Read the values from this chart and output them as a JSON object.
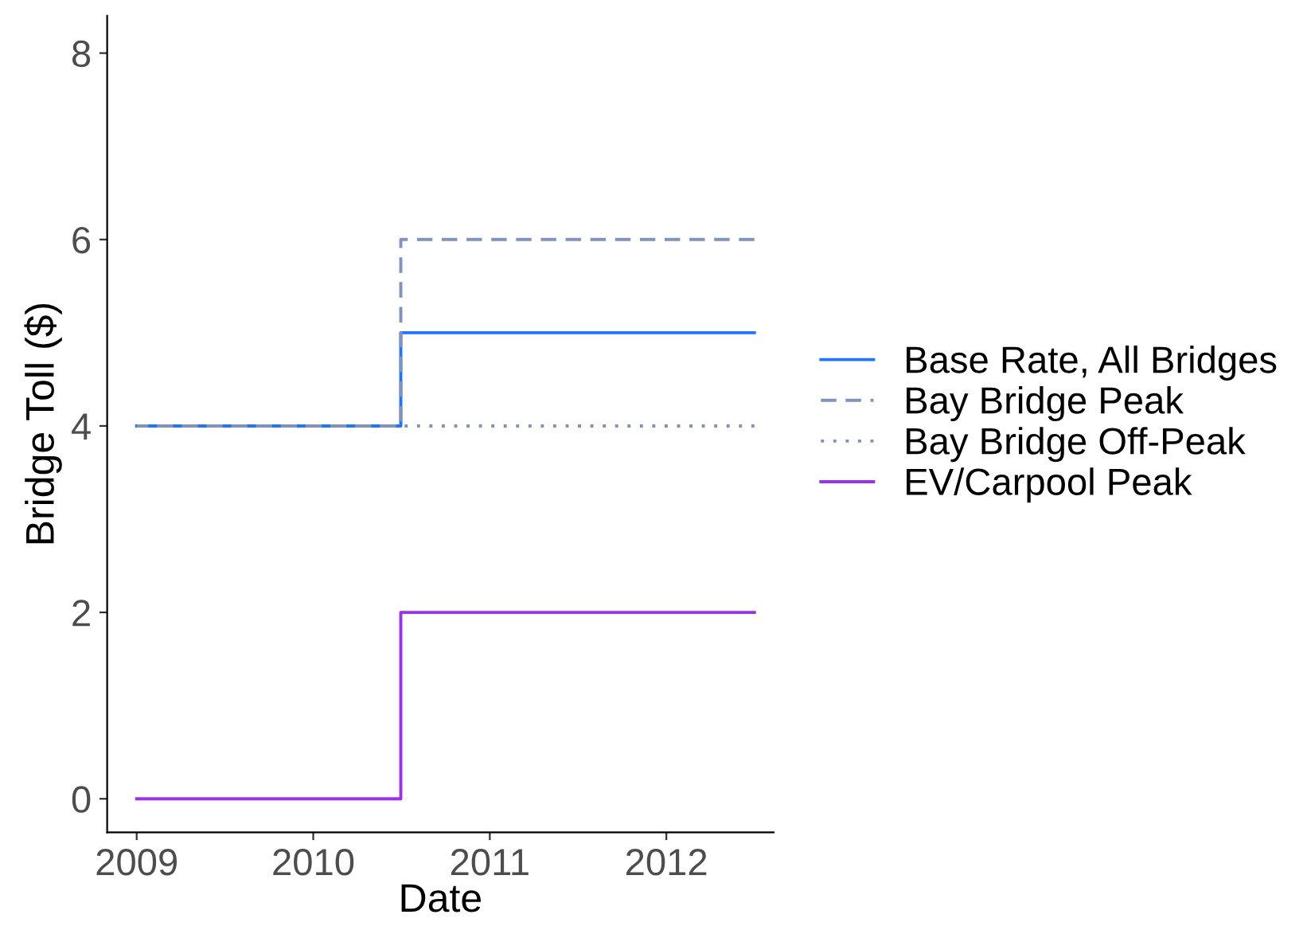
{
  "chart_data": {
    "type": "step",
    "xlabel": "Date",
    "ylabel": "Bridge Toll ($)",
    "series": [
      {
        "name": "Base Rate, All Bridges",
        "color": "#1f75fe",
        "line_style": "solid",
        "x": [
          "2009-01-01",
          "2010-07-01",
          "2012-07-01"
        ],
        "values": [
          4,
          5,
          5
        ]
      },
      {
        "name": "Bay Bridge Peak",
        "color": "#7f93bf",
        "line_style": "dashed",
        "x": [
          "2009-01-01",
          "2010-07-01",
          "2012-07-01"
        ],
        "values": [
          4,
          6,
          6
        ]
      },
      {
        "name": "Bay Bridge Off-Peak",
        "color": "#7f93bf",
        "line_style": "dotted",
        "x": [
          "2009-01-01",
          "2010-07-01",
          "2012-07-01"
        ],
        "values": [
          4,
          4,
          4
        ]
      },
      {
        "name": "EV/Carpool Peak",
        "color": "#9b30f0",
        "line_style": "solid",
        "x": [
          "2009-01-01",
          "2010-07-01",
          "2012-07-01"
        ],
        "values": [
          0,
          2,
          2
        ]
      }
    ],
    "xlim": [
      "2008-11-01",
      "2012-08-10"
    ],
    "xticks": [
      {
        "value": "2009-01-01",
        "label": "2009"
      },
      {
        "value": "2010-01-01",
        "label": "2010"
      },
      {
        "value": "2011-01-01",
        "label": "2011"
      },
      {
        "value": "2012-01-01",
        "label": "2012"
      }
    ],
    "ylim": [
      -0.36,
      8.4
    ],
    "yticks": [
      0,
      2,
      4,
      6,
      8
    ],
    "grid": false,
    "legend": "right"
  }
}
